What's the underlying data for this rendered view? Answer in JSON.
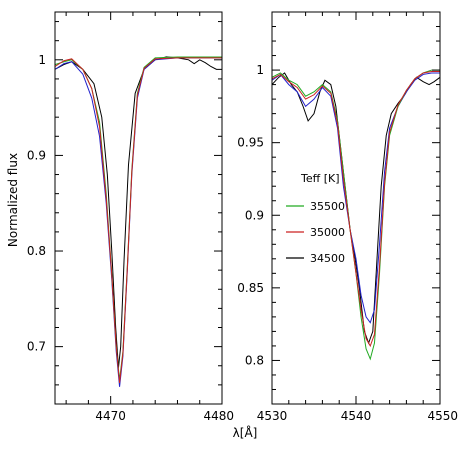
{
  "chart_data": [
    {
      "type": "line",
      "xlabel": "",
      "ylabel": "Normalized flux",
      "xlim": [
        4465,
        4480
      ],
      "ylim": [
        0.64,
        1.05
      ],
      "xticks": [
        4470,
        4480
      ],
      "yticks": [
        0.7,
        0.8,
        0.9,
        1.0
      ],
      "ytick_labels": [
        "0.7",
        "0.8",
        "0.9",
        "1"
      ],
      "xtick_labels": [
        "4470",
        "4480"
      ],
      "series": [
        {
          "color": "#000000",
          "points": [
            [
              4465,
              0.99
            ],
            [
              4465.8,
              0.995
            ],
            [
              4466.5,
              0.998
            ],
            [
              4467.5,
              0.99
            ],
            [
              4468.5,
              0.975
            ],
            [
              4469.2,
              0.94
            ],
            [
              4469.7,
              0.88
            ],
            [
              4470.1,
              0.8
            ],
            [
              4470.45,
              0.72
            ],
            [
              4470.7,
              0.678
            ],
            [
              4470.9,
              0.7
            ],
            [
              4471.2,
              0.79
            ],
            [
              4471.6,
              0.89
            ],
            [
              4472.2,
              0.965
            ],
            [
              4473,
              0.99
            ],
            [
              4474,
              1.0
            ],
            [
              4475,
              1.003
            ],
            [
              4476,
              1.002
            ],
            [
              4477,
              1.0
            ],
            [
              4477.5,
              0.996
            ],
            [
              4478,
              1.0
            ],
            [
              4478.5,
              0.997
            ],
            [
              4479,
              0.993
            ],
            [
              4479.5,
              0.99
            ],
            [
              4480,
              0.99
            ]
          ]
        },
        {
          "color": "#2222cc",
          "points": [
            [
              4465,
              0.99
            ],
            [
              4465.8,
              0.996
            ],
            [
              4466.5,
              0.998
            ],
            [
              4467.5,
              0.985
            ],
            [
              4468.3,
              0.96
            ],
            [
              4469,
              0.92
            ],
            [
              4469.6,
              0.85
            ],
            [
              4470.1,
              0.77
            ],
            [
              4470.5,
              0.695
            ],
            [
              4470.8,
              0.658
            ],
            [
              4471.1,
              0.69
            ],
            [
              4471.5,
              0.78
            ],
            [
              4471.9,
              0.88
            ],
            [
              4472.4,
              0.96
            ],
            [
              4473,
              0.99
            ],
            [
              4474,
              1.0
            ],
            [
              4476,
              1.002
            ],
            [
              4478,
              1.002
            ],
            [
              4480,
              1.002
            ]
          ]
        },
        {
          "color": "#22aa22",
          "points": [
            [
              4465,
              0.995
            ],
            [
              4465.8,
              0.998
            ],
            [
              4466.5,
              1.0
            ],
            [
              4467.5,
              0.99
            ],
            [
              4468.3,
              0.97
            ],
            [
              4469,
              0.935
            ],
            [
              4469.6,
              0.86
            ],
            [
              4470.1,
              0.775
            ],
            [
              4470.5,
              0.7
            ],
            [
              4470.8,
              0.665
            ],
            [
              4471.1,
              0.695
            ],
            [
              4471.5,
              0.785
            ],
            [
              4471.9,
              0.885
            ],
            [
              4472.4,
              0.965
            ],
            [
              4473,
              0.992
            ],
            [
              4474,
              1.002
            ],
            [
              4476,
              1.003
            ],
            [
              4478,
              1.003
            ],
            [
              4480,
              1.003
            ]
          ]
        },
        {
          "color": "#cc2222",
          "points": [
            [
              4465,
              0.993
            ],
            [
              4465.8,
              0.999
            ],
            [
              4466.5,
              1.001
            ],
            [
              4467.5,
              0.99
            ],
            [
              4468.3,
              0.97
            ],
            [
              4469,
              0.93
            ],
            [
              4469.6,
              0.855
            ],
            [
              4470.1,
              0.775
            ],
            [
              4470.5,
              0.7
            ],
            [
              4470.8,
              0.662
            ],
            [
              4471.1,
              0.693
            ],
            [
              4471.5,
              0.783
            ],
            [
              4471.9,
              0.883
            ],
            [
              4472.4,
              0.963
            ],
            [
              4473,
              0.991
            ],
            [
              4474,
              1.001
            ],
            [
              4476,
              1.002
            ],
            [
              4478,
              1.002
            ],
            [
              4480,
              1.002
            ]
          ]
        }
      ]
    },
    {
      "type": "line",
      "xlabel": "λ[Å]",
      "ylabel": "",
      "xlim": [
        4530,
        4550
      ],
      "ylim": [
        0.77,
        1.04
      ],
      "xticks": [
        4530,
        4540,
        4550
      ],
      "yticks": [
        0.8,
        0.85,
        0.9,
        0.95,
        1.0
      ],
      "ytick_labels": [
        "0.8",
        "0.85",
        "0.9",
        "0.95",
        "1"
      ],
      "xtick_labels": [
        "4530",
        "4540",
        "4550"
      ],
      "legend": {
        "title": "Teff [K]",
        "position": "center-left",
        "entries": [
          {
            "label": "35500",
            "color": "#22aa22"
          },
          {
            "label": "35000",
            "color": "#cc2222"
          },
          {
            "label": "34500",
            "color": "#000000"
          }
        ]
      },
      "series": [
        {
          "color": "#000000",
          "points": [
            [
              4530,
              0.99
            ],
            [
              4530.8,
              0.995
            ],
            [
              4531.5,
              0.998
            ],
            [
              4532.3,
              0.99
            ],
            [
              4533,
              0.985
            ],
            [
              4533.7,
              0.975
            ],
            [
              4534.3,
              0.965
            ],
            [
              4535,
              0.97
            ],
            [
              4535.7,
              0.985
            ],
            [
              4536.3,
              0.993
            ],
            [
              4537,
              0.99
            ],
            [
              4537.6,
              0.975
            ],
            [
              4538.2,
              0.945
            ],
            [
              4538.8,
              0.915
            ],
            [
              4539.3,
              0.89
            ],
            [
              4539.9,
              0.87
            ],
            [
              4540.4,
              0.85
            ],
            [
              4541,
              0.82
            ],
            [
              4541.5,
              0.812
            ],
            [
              4542,
              0.82
            ],
            [
              4542.5,
              0.87
            ],
            [
              4543,
              0.92
            ],
            [
              4543.6,
              0.955
            ],
            [
              4544.2,
              0.97
            ],
            [
              4545,
              0.977
            ],
            [
              4545.8,
              0.983
            ],
            [
              4546.5,
              0.99
            ],
            [
              4547.2,
              0.995
            ],
            [
              4548,
              0.992
            ],
            [
              4548.7,
              0.99
            ],
            [
              4549.3,
              0.992
            ],
            [
              4550,
              0.995
            ]
          ]
        },
        {
          "color": "#2222cc",
          "points": [
            [
              4530,
              0.993
            ],
            [
              4531,
              0.997
            ],
            [
              4532,
              0.99
            ],
            [
              4533,
              0.985
            ],
            [
              4534,
              0.975
            ],
            [
              4535,
              0.98
            ],
            [
              4536,
              0.988
            ],
            [
              4537,
              0.982
            ],
            [
              4537.8,
              0.96
            ],
            [
              4538.5,
              0.92
            ],
            [
              4539.3,
              0.89
            ],
            [
              4540,
              0.87
            ],
            [
              4540.6,
              0.845
            ],
            [
              4541.2,
              0.83
            ],
            [
              4541.7,
              0.826
            ],
            [
              4542.2,
              0.835
            ],
            [
              4542.8,
              0.88
            ],
            [
              4543.4,
              0.93
            ],
            [
              4544,
              0.96
            ],
            [
              4545,
              0.975
            ],
            [
              4546,
              0.985
            ],
            [
              4547,
              0.993
            ],
            [
              4548,
              0.997
            ],
            [
              4549,
              0.998
            ],
            [
              4550,
              0.998
            ]
          ]
        },
        {
          "color": "#22aa22",
          "points": [
            [
              4530,
              0.995
            ],
            [
              4531,
              0.998
            ],
            [
              4532,
              0.993
            ],
            [
              4533,
              0.99
            ],
            [
              4534,
              0.982
            ],
            [
              4535,
              0.985
            ],
            [
              4536,
              0.99
            ],
            [
              4537,
              0.985
            ],
            [
              4537.8,
              0.965
            ],
            [
              4538.5,
              0.93
            ],
            [
              4539.3,
              0.89
            ],
            [
              4540,
              0.86
            ],
            [
              4540.6,
              0.83
            ],
            [
              4541.2,
              0.808
            ],
            [
              4541.7,
              0.801
            ],
            [
              4542.2,
              0.812
            ],
            [
              4542.8,
              0.86
            ],
            [
              4543.4,
              0.92
            ],
            [
              4544,
              0.955
            ],
            [
              4545,
              0.975
            ],
            [
              4546,
              0.986
            ],
            [
              4547,
              0.994
            ],
            [
              4548,
              0.998
            ],
            [
              4549,
              1.0
            ],
            [
              4550,
              1.0
            ]
          ]
        },
        {
          "color": "#cc2222",
          "points": [
            [
              4530,
              0.994
            ],
            [
              4531,
              0.997
            ],
            [
              4532,
              0.992
            ],
            [
              4533,
              0.988
            ],
            [
              4534,
              0.98
            ],
            [
              4535,
              0.983
            ],
            [
              4536,
              0.989
            ],
            [
              4537,
              0.984
            ],
            [
              4537.8,
              0.963
            ],
            [
              4538.5,
              0.925
            ],
            [
              4539.3,
              0.89
            ],
            [
              4540,
              0.86
            ],
            [
              4540.6,
              0.835
            ],
            [
              4541.2,
              0.815
            ],
            [
              4541.7,
              0.81
            ],
            [
              4542.2,
              0.818
            ],
            [
              4542.8,
              0.865
            ],
            [
              4543.4,
              0.922
            ],
            [
              4544,
              0.957
            ],
            [
              4545,
              0.976
            ],
            [
              4546,
              0.986
            ],
            [
              4547,
              0.994
            ],
            [
              4548,
              0.998
            ],
            [
              4549,
              0.999
            ],
            [
              4550,
              0.999
            ]
          ]
        }
      ]
    }
  ]
}
